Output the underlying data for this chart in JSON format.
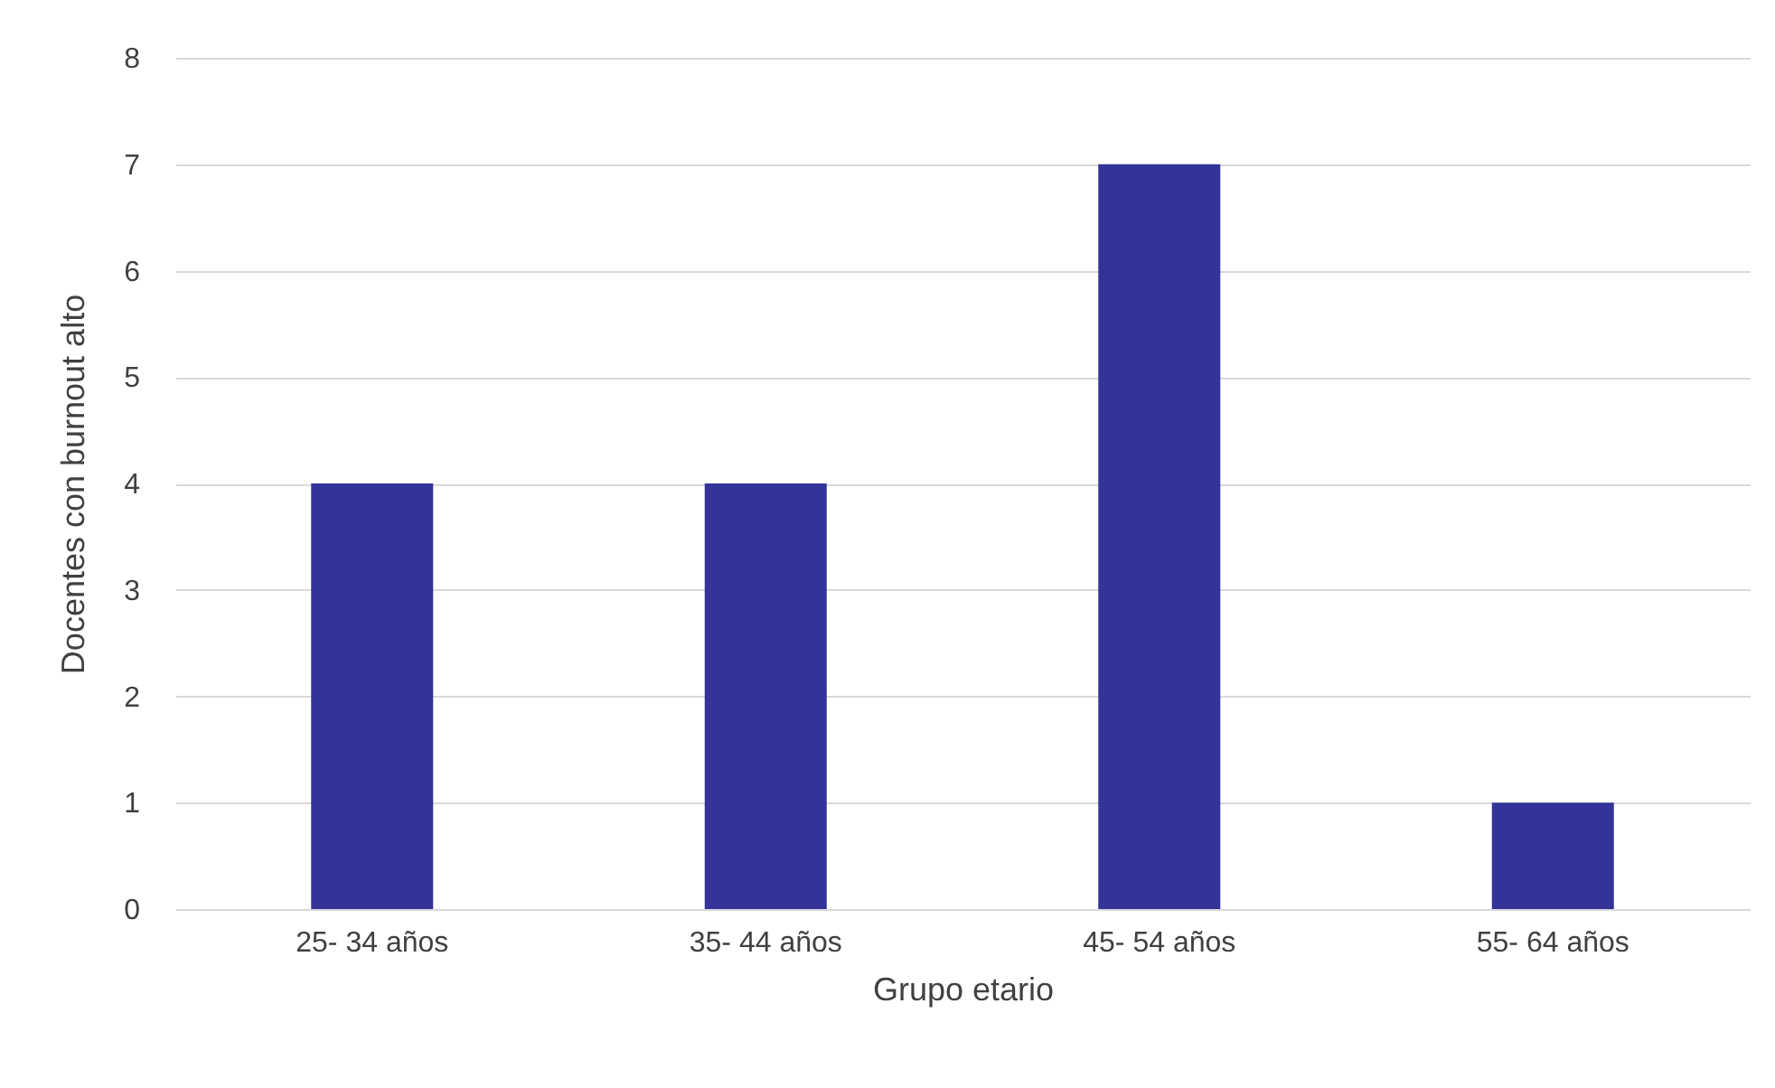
{
  "chart_data": {
    "type": "bar",
    "xlabel": "Grupo etario",
    "ylabel": "Docentes con burnout alto",
    "categories": [
      "25- 34 años",
      "35- 44 años",
      "45- 54 años",
      "55- 64 años"
    ],
    "values": [
      4,
      4,
      7,
      1
    ],
    "color": "#333399",
    "ylim": [
      0,
      8
    ],
    "yticks": [
      0,
      1,
      2,
      3,
      4,
      5,
      6,
      7,
      8
    ],
    "grid": "y"
  }
}
